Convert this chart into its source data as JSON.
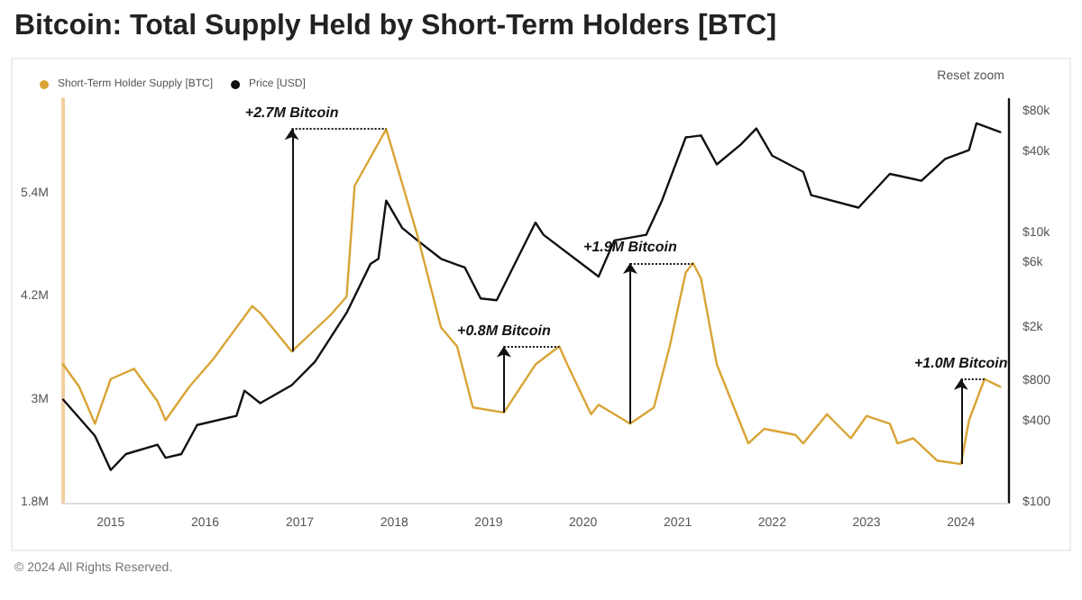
{
  "chart_data": {
    "type": "line",
    "title": "Bitcoin: Total Supply Held by Short-Term Holders [BTC]",
    "series": [
      {
        "name": "Short-Term Holder Supply [BTC]",
        "color": "#d9a435",
        "x": [
          "2014-07",
          "2014-09",
          "2014-11",
          "2015-01",
          "2015-04",
          "2015-07",
          "2015-08",
          "2015-11",
          "2016-02",
          "2016-07",
          "2016-08",
          "2016-12",
          "2017-05",
          "2017-07",
          "2017-08",
          "2017-12",
          "2018-04",
          "2018-07",
          "2018-09",
          "2018-11",
          "2019-03",
          "2019-07",
          "2019-10",
          "2019-11",
          "2020-02",
          "2020-03",
          "2020-07",
          "2020-10",
          "2020-12",
          "2021-02",
          "2021-03",
          "2021-04",
          "2021-06",
          "2021-10",
          "2021-12",
          "2022-04",
          "2022-05",
          "2022-08",
          "2022-11",
          "2023-01",
          "2023-04",
          "2023-05",
          "2023-07",
          "2023-10",
          "2024-01",
          "2024-02",
          "2024-04",
          "2024-06"
        ],
        "values": [
          3.41,
          3.15,
          2.72,
          3.24,
          3.36,
          2.98,
          2.76,
          3.15,
          3.47,
          4.09,
          4.01,
          3.56,
          3.99,
          4.2,
          5.49,
          6.15,
          4.91,
          3.84,
          3.62,
          2.91,
          2.85,
          3.41,
          3.62,
          3.41,
          2.83,
          2.94,
          2.72,
          2.91,
          3.62,
          4.48,
          4.59,
          4.41,
          3.41,
          2.49,
          2.66,
          2.59,
          2.49,
          2.83,
          2.55,
          2.81,
          2.72,
          2.49,
          2.55,
          2.29,
          2.25,
          2.76,
          3.24,
          3.15
        ]
      },
      {
        "name": "Price [USD]",
        "color": "#111111",
        "axis": "y2",
        "x": [
          "2014-07",
          "2014-11",
          "2015-01",
          "2015-03",
          "2015-07",
          "2015-08",
          "2015-10",
          "2015-12",
          "2016-05",
          "2016-06",
          "2016-08",
          "2016-12",
          "2017-03",
          "2017-07",
          "2017-10",
          "2017-11",
          "2017-12",
          "2018-02",
          "2018-04",
          "2018-07",
          "2018-10",
          "2018-12",
          "2019-02",
          "2019-07",
          "2019-08",
          "2020-03",
          "2020-05",
          "2020-09",
          "2020-11",
          "2021-02",
          "2021-04",
          "2021-06",
          "2021-09",
          "2021-11",
          "2022-01",
          "2022-05",
          "2022-06",
          "2022-12",
          "2023-02",
          "2023-04",
          "2023-08",
          "2023-11",
          "2024-02",
          "2024-03",
          "2024-06"
        ],
        "values": [
          584,
          314,
          175,
          230,
          270,
          216,
          230,
          378,
          442,
          680,
          549,
          748,
          1120,
          2580,
          5940,
          6500,
          17600,
          11000,
          8900,
          6500,
          5600,
          3300,
          3200,
          12100,
          9800,
          4800,
          8900,
          9800,
          17600,
          51900,
          53700,
          32700,
          45800,
          60500,
          38000,
          28800,
          19300,
          15600,
          21000,
          27800,
          24700,
          36000,
          41800,
          66000,
          56800
        ]
      }
    ],
    "xlim": [
      "2014-07",
      "2024-07"
    ],
    "xticks": [
      "2015",
      "2016",
      "2017",
      "2018",
      "2019",
      "2020",
      "2021",
      "2022",
      "2023",
      "2024"
    ],
    "ylim": [
      1.8,
      6.5
    ],
    "yticks": [
      {
        "value": 1.8,
        "label": "1.8M"
      },
      {
        "value": 3,
        "label": "3M"
      },
      {
        "value": 4.2,
        "label": "4.2M"
      },
      {
        "value": 5.4,
        "label": "5.4M"
      }
    ],
    "y2lim": [
      100,
      100000
    ],
    "y2ticks": [
      {
        "value": 100,
        "label": "$100"
      },
      {
        "value": 400,
        "label": "$400"
      },
      {
        "value": 800,
        "label": "$800"
      },
      {
        "value": 2000,
        "label": "$2k"
      },
      {
        "value": 6000,
        "label": "$6k"
      },
      {
        "value": 10000,
        "label": "$10k"
      },
      {
        "value": 40000,
        "label": "$40k"
      },
      {
        "value": 80000,
        "label": "$80k"
      }
    ],
    "log": "y2",
    "grid": false,
    "legend": "top left",
    "marker": "none",
    "line_style": "solid",
    "annotations": [
      {
        "text": "+2.7M Bitcoin",
        "x": "2017-12",
        "y": 6.15
      },
      {
        "text": "+0.8M Bitcoin",
        "x": "2019-10",
        "y": 3.62
      },
      {
        "text": "+1.9M Bitcoin",
        "x": "2021-03",
        "y": 4.59
      },
      {
        "text": "+1.0M Bitcoin",
        "x": "2024-04",
        "y": 3.24
      },
      "Reset zoom",
      "© 2024 All Rights Reserved."
    ]
  }
}
